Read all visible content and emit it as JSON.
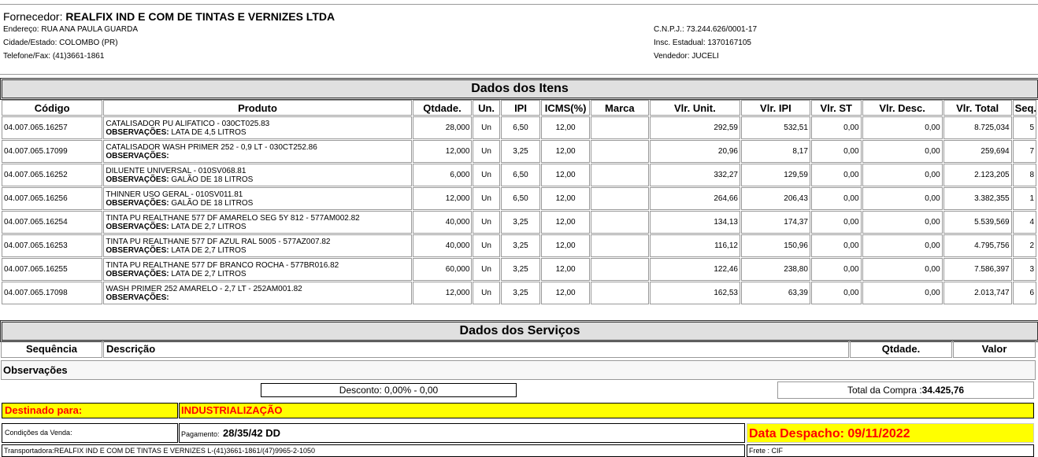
{
  "supplier": {
    "label": "Fornecedor:",
    "name": "REALFIX IND E COM DE TINTAS E VERNIZES LTDA",
    "address": "Endereço: RUA ANA PAULA GUARDA",
    "city": "Cidade/Estado: COLOMBO (PR)",
    "phone": "Telefone/Fax: (41)3661-1861",
    "cnpj": "C.N.P.J.: 73.244.626/0001-17",
    "ie": "Insc. Estadual: 1370167105",
    "seller": "Vendedor: JUCELI"
  },
  "items": {
    "title": "Dados dos Itens",
    "columns": [
      "Código",
      "Produto",
      "Qtdade.",
      "Un.",
      "IPI",
      "ICMS(%)",
      "Marca",
      "Vlr. Unit.",
      "Vlr. IPI",
      "Vlr. ST",
      "Vlr. Desc.",
      "Vlr. Total",
      "Seq."
    ],
    "obs_label": "OBSERVAÇÕES:",
    "rows": [
      {
        "codigo": "04.007.065.16257",
        "produto": "CATALISADOR PU ALIFATICO - 030CT025.83",
        "obs": "LATA DE 4,5 LITROS",
        "qtd": "28,000",
        "un": "Un",
        "ipi": "6,50",
        "icms": "12,00",
        "marca": "",
        "unit": "292,59",
        "vipi": "532,51",
        "st": "0,00",
        "desc": "0,00",
        "total": "8.725,034",
        "seq": "5"
      },
      {
        "codigo": "04.007.065.17099",
        "produto": "CATALISADOR WASH PRIMER 252 - 0,9 LT - 030CT252.86",
        "obs": "",
        "qtd": "12,000",
        "un": "Un",
        "ipi": "3,25",
        "icms": "12,00",
        "marca": "",
        "unit": "20,96",
        "vipi": "8,17",
        "st": "0,00",
        "desc": "0,00",
        "total": "259,694",
        "seq": "7"
      },
      {
        "codigo": "04.007.065.16252",
        "produto": "DILUENTE UNIVERSAL - 010SV068.81",
        "obs": "GALÃO DE 18 LITROS",
        "qtd": "6,000",
        "un": "Un",
        "ipi": "6,50",
        "icms": "12,00",
        "marca": "",
        "unit": "332,27",
        "vipi": "129,59",
        "st": "0,00",
        "desc": "0,00",
        "total": "2.123,205",
        "seq": "8"
      },
      {
        "codigo": "04.007.065.16256",
        "produto": "THINNER USO GERAL - 010SV011.81",
        "obs": "GALÃO DE 18 LITROS",
        "qtd": "12,000",
        "un": "Un",
        "ipi": "6,50",
        "icms": "12,00",
        "marca": "",
        "unit": "264,66",
        "vipi": "206,43",
        "st": "0,00",
        "desc": "0,00",
        "total": "3.382,355",
        "seq": "1"
      },
      {
        "codigo": "04.007.065.16254",
        "produto": "TINTA PU REALTHANE 577 DF AMARELO SEG 5Y 812 - 577AM002.82",
        "obs": "LATA DE 2,7 LITROS",
        "qtd": "40,000",
        "un": "Un",
        "ipi": "3,25",
        "icms": "12,00",
        "marca": "",
        "unit": "134,13",
        "vipi": "174,37",
        "st": "0,00",
        "desc": "0,00",
        "total": "5.539,569",
        "seq": "4"
      },
      {
        "codigo": "04.007.065.16253",
        "produto": "TINTA PU REALTHANE 577 DF AZUL RAL 5005 - 577AZ007.82",
        "obs": "LATA DE 2,7 LITROS",
        "qtd": "40,000",
        "un": "Un",
        "ipi": "3,25",
        "icms": "12,00",
        "marca": "",
        "unit": "116,12",
        "vipi": "150,96",
        "st": "0,00",
        "desc": "0,00",
        "total": "4.795,756",
        "seq": "2"
      },
      {
        "codigo": "04.007.065.16255",
        "produto": "TINTA PU REALTHANE 577 DF BRANCO ROCHA - 577BR016.82",
        "obs": "LATA DE 2,7 LITROS",
        "qtd": "60,000",
        "un": "Un",
        "ipi": "3,25",
        "icms": "12,00",
        "marca": "",
        "unit": "122,46",
        "vipi": "238,80",
        "st": "0,00",
        "desc": "0,00",
        "total": "7.586,397",
        "seq": "3"
      },
      {
        "codigo": "04.007.065.17098",
        "produto": "WASH PRIMER 252 AMARELO - 2,7 LT - 252AM001.82",
        "obs": "",
        "qtd": "12,000",
        "un": "Un",
        "ipi": "3,25",
        "icms": "12,00",
        "marca": "",
        "unit": "162,53",
        "vipi": "63,39",
        "st": "0,00",
        "desc": "0,00",
        "total": "2.013,747",
        "seq": "6"
      }
    ]
  },
  "services": {
    "title": "Dados dos Serviços",
    "col_seq": "Sequência",
    "col_desc": "Descrição",
    "col_qtd": "Qtdade.",
    "col_valor": "Valor",
    "obs": "Observações"
  },
  "summary": {
    "discount": "Desconto: 0,00% - 0,00",
    "total_label": "Total da Compra :",
    "total_value": "34.425,76"
  },
  "footer": {
    "dest_label": "Destinado para:",
    "dest_value": "INDUSTRIALIZAÇÃO",
    "cond_label": "Condições da Venda:",
    "pay_label": "Pagamento:",
    "pay_value": "28/35/42 DD",
    "dispatch": "Data Despacho: 09/11/2022",
    "carrier": "Transportadora:REALFIX IND E COM DE TINTAS E VERNIZES L-(41)3661-1861/(47)9965-2-1050",
    "freight": "Frete : CIF"
  },
  "colors": {
    "highlight": "#ffff00",
    "alert": "#ff0000",
    "bar": "#e0e0e0"
  }
}
